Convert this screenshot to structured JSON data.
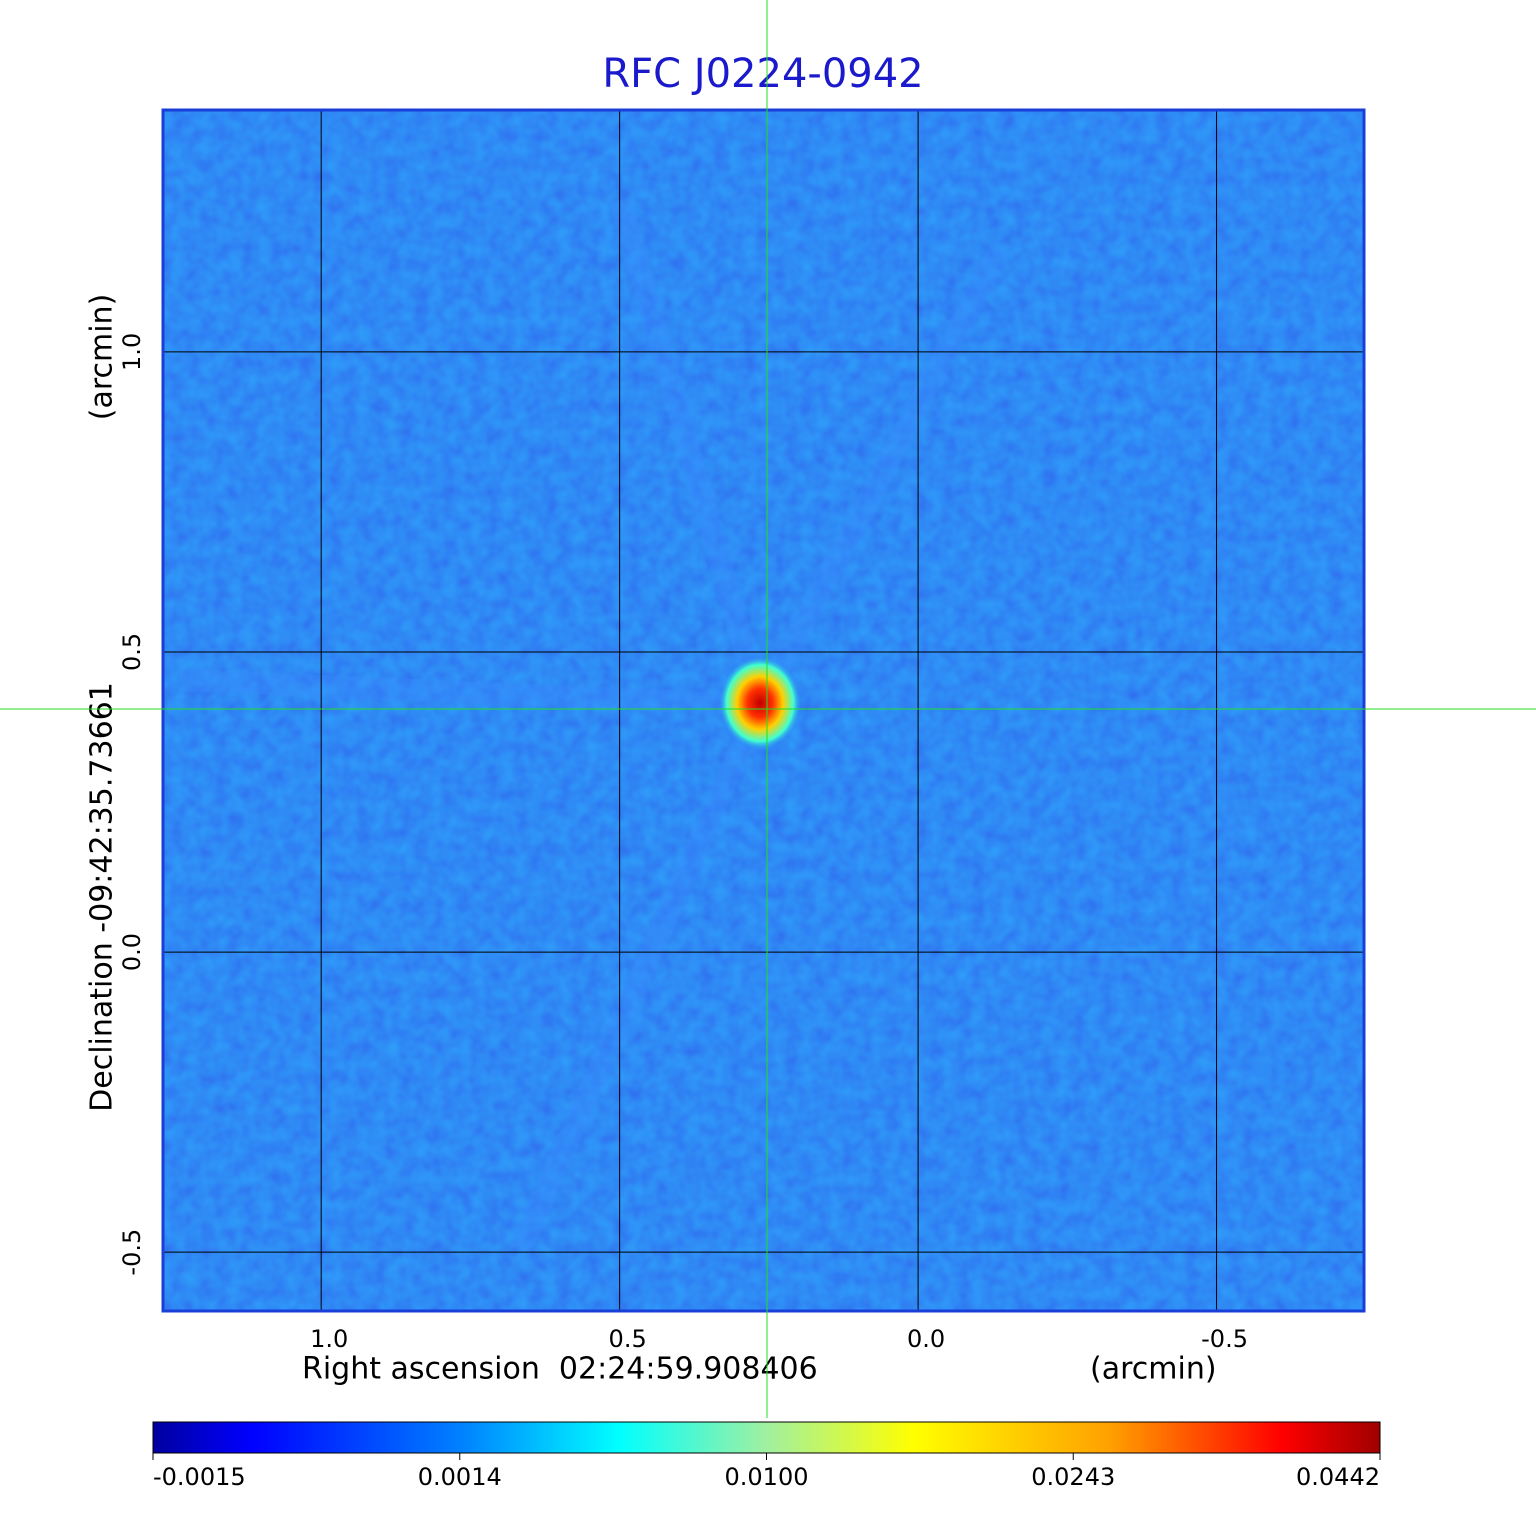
{
  "chart_data": {
    "type": "image",
    "title": "RFC J0224-0942",
    "xlabel": "Right ascension  02:24:59.908406",
    "xunit": "(arcmin)",
    "ylabel": "Declination -09:42:35.73661",
    "yunit": "(arcmin)",
    "xlim": [
      1.265,
      -0.747
    ],
    "ylim": [
      -0.598,
      1.403
    ],
    "xticks": [
      {
        "value": 1,
        "label": "1.0"
      },
      0.5,
      {
        "value": 0,
        "label": "0.0"
      },
      -0.5
    ],
    "yticks": [
      -0.5,
      {
        "value": 0,
        "label": "0.0"
      },
      0.5,
      {
        "value": 1,
        "label": "1.0"
      }
    ],
    "grid": true,
    "colormap": "jet",
    "colorbar_ticks": [
      -0.0015,
      0.0014,
      {
        "value": 0.01,
        "label": "0.0100"
      },
      0.0243,
      0.0442
    ],
    "colorbar_scale": "quantile"
  }
}
